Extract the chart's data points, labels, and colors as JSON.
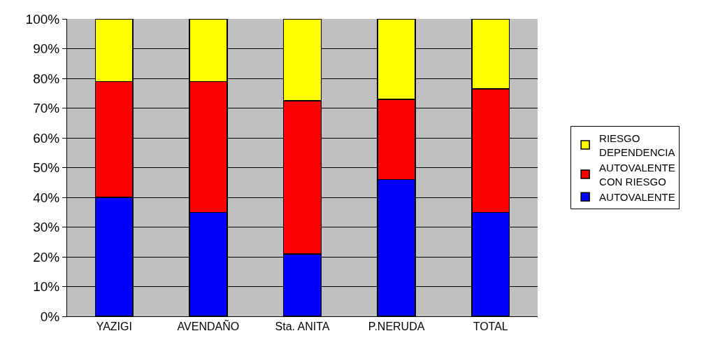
{
  "chart_data": {
    "type": "bar",
    "stacked": true,
    "categories": [
      "YAZIGI",
      "AVENDAÑO",
      "Sta. ANITA",
      "P.NERUDA",
      "TOTAL"
    ],
    "series": [
      {
        "name": "AUTOVALENTE",
        "color": "#0000ff",
        "values": [
          40,
          35,
          21,
          46,
          35
        ]
      },
      {
        "name": "AUTOVALENTE CON RIESGO",
        "color": "#ff0000",
        "values": [
          39,
          44,
          51.5,
          27,
          41.5
        ]
      },
      {
        "name": "RIESGO DEPENDENCIA",
        "color": "#ffff00",
        "values": [
          21,
          21,
          27.5,
          27,
          23.5
        ]
      }
    ],
    "ylim": [
      0,
      100
    ],
    "yticks": [
      {
        "value": 0,
        "label": "0%"
      },
      {
        "value": 10,
        "label": "10%"
      },
      {
        "value": 20,
        "label": "20%"
      },
      {
        "value": 30,
        "label": "30%"
      },
      {
        "value": 40,
        "label": "40%"
      },
      {
        "value": 50,
        "label": "50%"
      },
      {
        "value": 60,
        "label": "60%"
      },
      {
        "value": 70,
        "label": "70%"
      },
      {
        "value": 80,
        "label": "80%"
      },
      {
        "value": 90,
        "label": "90%"
      },
      {
        "value": 100,
        "label": "100%"
      }
    ],
    "grid": "y",
    "legend": "right"
  }
}
